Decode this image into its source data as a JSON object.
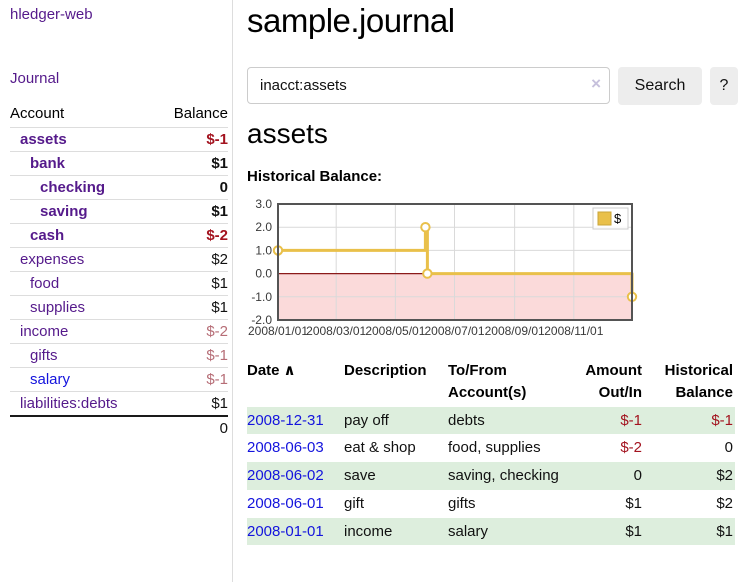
{
  "colors": {
    "link_purple": "#551a8b",
    "link_blue": "#1414dd",
    "negative_strong": "#a3131f",
    "negative_muted": "#b66d76",
    "row_green": "#ddeedd",
    "chart_line_gold": "#e9c04a",
    "chart_negative_bg": "#fbdada",
    "chart_zero_line": "#8b1a1a",
    "button_gray": "#ededed"
  },
  "sidebar": {
    "brand": "hledger-web",
    "journal_link": "Journal",
    "accounts": {
      "header_account": "Account",
      "header_balance": "Balance",
      "rows": [
        {
          "name": "assets",
          "balance": "$-1"
        },
        {
          "name": "bank",
          "balance": "$1"
        },
        {
          "name": "checking",
          "balance": "0"
        },
        {
          "name": "saving",
          "balance": "$1"
        },
        {
          "name": "cash",
          "balance": "$-2"
        },
        {
          "name": "expenses",
          "balance": "$2"
        },
        {
          "name": "food",
          "balance": "$1"
        },
        {
          "name": "supplies",
          "balance": "$1"
        },
        {
          "name": "income",
          "balance": "$-2"
        },
        {
          "name": "gifts",
          "balance": "$-1"
        },
        {
          "name": "salary",
          "balance": "$-1"
        },
        {
          "name": "liabilities:debts",
          "balance": "$1"
        }
      ],
      "total": "0"
    }
  },
  "main": {
    "title": "sample.journal",
    "search": {
      "value": "inacct:assets",
      "clear": "×",
      "search_button": "Search",
      "help_button": "?"
    },
    "account_heading": "assets",
    "section_label": "Historical Balance:"
  },
  "chart_data": {
    "type": "line",
    "step": true,
    "title": "Historical Balance of assets",
    "x_min": "2008-01-01",
    "x_max": "2008-12-31",
    "ylim": [
      -2,
      3
    ],
    "y_ticks": [
      3,
      2,
      1,
      0,
      -1,
      -2
    ],
    "x_ticks": [
      {
        "date": "2008-01-01",
        "label": "2008/01/01"
      },
      {
        "date": "2008-03-01",
        "label": "2008/03/01"
      },
      {
        "date": "2008-05-01",
        "label": "2008/05/01"
      },
      {
        "date": "2008-07-01",
        "label": "2008/07/01"
      },
      {
        "date": "2008-09-01",
        "label": "2008/09/01"
      },
      {
        "date": "2008-11-01",
        "label": "2008/11/01"
      }
    ],
    "series": [
      {
        "name": "$",
        "color": "#e9c04a",
        "points": [
          [
            "2008-01-01",
            1
          ],
          [
            "2008-06-01",
            2
          ],
          [
            "2008-06-03",
            0
          ],
          [
            "2008-12-31",
            -1
          ]
        ]
      }
    ],
    "grid": true,
    "legend_position": "top-right",
    "negative_region": true
  },
  "register": {
    "headers": {
      "date": "Date",
      "sort_icon": "∧",
      "description": "Description",
      "accounts": "To/From Account(s)",
      "amount": "Amount Out/In",
      "balance": "Historical Balance"
    },
    "rows": [
      {
        "date": "2008-12-31",
        "description": "pay off",
        "accounts": "debts",
        "amount": "$-1",
        "balance": "$-1"
      },
      {
        "date": "2008-06-03",
        "description": "eat & shop",
        "accounts": "food, supplies",
        "amount": "$-2",
        "balance": "0"
      },
      {
        "date": "2008-06-02",
        "description": "save",
        "accounts": "saving, checking",
        "amount": "0",
        "balance": "$2"
      },
      {
        "date": "2008-06-01",
        "description": "gift",
        "accounts": "gifts",
        "amount": "$1",
        "balance": "$2"
      },
      {
        "date": "2008-01-01",
        "description": "income",
        "accounts": "salary",
        "amount": "$1",
        "balance": "$1"
      }
    ]
  }
}
